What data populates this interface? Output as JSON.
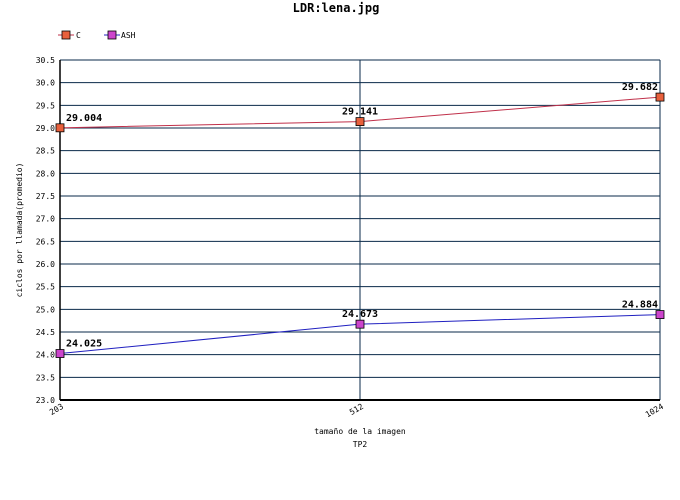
{
  "chart_data": {
    "type": "line",
    "title": "LDR:lena.jpg",
    "xlabel": "tamaño de la imagen",
    "subxlabel": "TP2",
    "ylabel": "ciclos por llamada(promedio)",
    "categories": [
      "203",
      "512",
      "1024"
    ],
    "ylim": [
      23.0,
      30.5
    ],
    "yticks": [
      "23.0",
      "23.5",
      "24.0",
      "24.5",
      "25.0",
      "25.5",
      "26.0",
      "26.5",
      "27.0",
      "27.5",
      "28.0",
      "28.5",
      "29.0",
      "29.5",
      "30.0",
      "30.5"
    ],
    "grid": true,
    "legend_position": "top-left",
    "series": [
      {
        "name": "C",
        "values": [
          29.004,
          29.141,
          29.682
        ],
        "labels": [
          "29.004",
          "29.141",
          "29.682"
        ],
        "line_color": "#c0304a",
        "marker_color": "#e8603c"
      },
      {
        "name": "ASH",
        "values": [
          24.025,
          24.673,
          24.884
        ],
        "labels": [
          "24.025",
          "24.673",
          "24.884"
        ],
        "line_color": "#2020c0",
        "marker_color": "#cc44cc"
      }
    ]
  },
  "colors": {
    "grid": "#0a2a4a",
    "axis": "#000000"
  }
}
